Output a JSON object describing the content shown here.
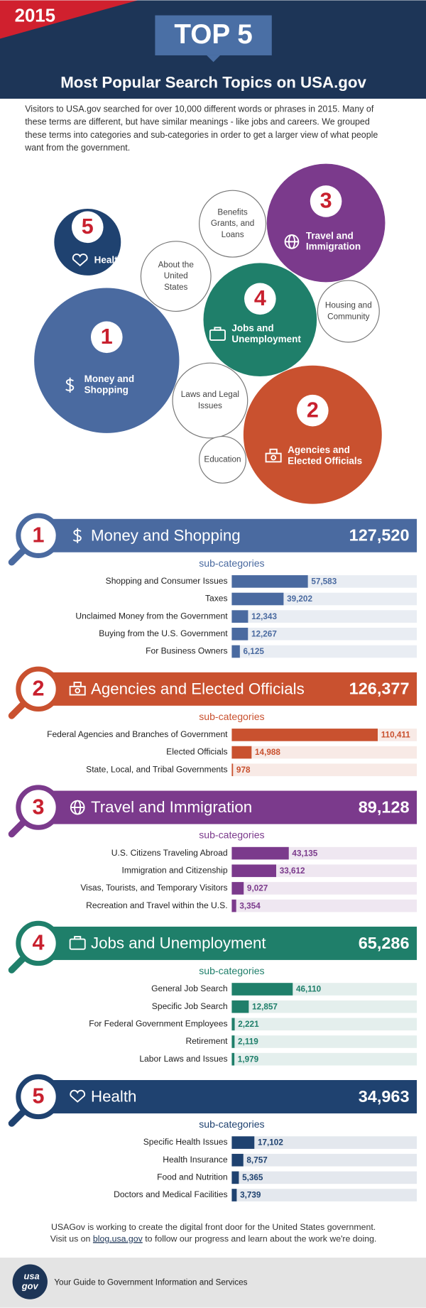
{
  "header": {
    "year": "2015",
    "badge": "TOP 5",
    "title": "Most Popular Search Topics on USA.gov"
  },
  "intro": [
    "Visitors to USA.gov searched for over 10,000 different words or phrases in 2015. Many of",
    "these terms are different, but have similar meanings - like jobs and careers. We grouped",
    "these terms into categories and sub-categories in order to get a larger view of what people",
    "want from the government."
  ],
  "bubbles": [
    {
      "rank": "5",
      "label": [
        "Health"
      ]
    },
    {
      "label": [
        "About the",
        "United",
        "States"
      ]
    },
    {
      "label": [
        "Benefits",
        "Grants, and",
        "Loans"
      ]
    },
    {
      "rank": "3",
      "label": [
        "Travel and",
        "Immigration"
      ]
    },
    {
      "rank": "4",
      "label": [
        "Jobs and",
        "Unemployment"
      ]
    },
    {
      "label": [
        "Housing and",
        "Community"
      ]
    },
    {
      "rank": "1",
      "label": [
        "Money and",
        "Shopping"
      ]
    },
    {
      "label": [
        "Laws and Legal",
        "Issues"
      ]
    },
    {
      "rank": "2",
      "label": [
        "Agencies and",
        "Elected Officials"
      ]
    },
    {
      "label": [
        "Education"
      ]
    }
  ],
  "bar_xlim": [
    0,
    140000
  ],
  "sections": [
    {
      "rank": "1",
      "title": "Money and Shopping",
      "total": "127,520",
      "subtitle": "sub-categories",
      "color": "#4a6aa0",
      "items": [
        {
          "name": "Shopping and Consumer Issues",
          "value": 57583,
          "value_label": "57,583"
        },
        {
          "name": "Taxes",
          "value": 39202,
          "value_label": "39,202"
        },
        {
          "name": "Unclaimed Money from the Government",
          "value": 12343,
          "value_label": "12,343"
        },
        {
          "name": "Buying from the U.S. Government",
          "value": 12267,
          "value_label": "12,267"
        },
        {
          "name": "For Business Owners",
          "value": 6125,
          "value_label": "6,125"
        }
      ]
    },
    {
      "rank": "2",
      "title": "Agencies and Elected Officials",
      "total": "126,377",
      "subtitle": "sub-categories",
      "color": "#c9512f",
      "items": [
        {
          "name": "Federal Agencies and Branches of Government",
          "value": 110411,
          "value_label": "110,411"
        },
        {
          "name": "Elected Officials",
          "value": 14988,
          "value_label": "14,988"
        },
        {
          "name": "State, Local, and Tribal Governments",
          "value": 978,
          "value_label": "978"
        }
      ]
    },
    {
      "rank": "3",
      "title": "Travel and Immigration",
      "total": "89,128",
      "subtitle": "sub-categories",
      "color": "#7b3a8c",
      "items": [
        {
          "name": "U.S. Citizens Traveling Abroad",
          "value": 43135,
          "value_label": "43,135"
        },
        {
          "name": "Immigration and Citizenship",
          "value": 33612,
          "value_label": "33,612"
        },
        {
          "name": "Visas, Tourists, and Temporary Visitors",
          "value": 9027,
          "value_label": "9,027"
        },
        {
          "name": "Recreation and Travel within the U.S.",
          "value": 3354,
          "value_label": "3,354"
        }
      ]
    },
    {
      "rank": "4",
      "title": "Jobs and Unemployment",
      "total": "65,286",
      "subtitle": "sub-categories",
      "color": "#1f7f6a",
      "items": [
        {
          "name": "General Job Search",
          "value": 46110,
          "value_label": "46,110"
        },
        {
          "name": "Specific Job Search",
          "value": 12857,
          "value_label": "12,857"
        },
        {
          "name": "For Federal Government Employees",
          "value": 2221,
          "value_label": "2,221"
        },
        {
          "name": "Retirement",
          "value": 2119,
          "value_label": "2,119"
        },
        {
          "name": "Labor Laws and Issues",
          "value": 1979,
          "value_label": "1,979"
        }
      ]
    },
    {
      "rank": "5",
      "title": "Health",
      "total": "34,963",
      "subtitle": "sub-categories",
      "color": "#1f4270",
      "items": [
        {
          "name": "Specific Health Issues",
          "value": 17102,
          "value_label": "17,102"
        },
        {
          "name": "Health Insurance",
          "value": 8757,
          "value_label": "8,757"
        },
        {
          "name": "Food and Nutrition",
          "value": 5365,
          "value_label": "5,365"
        },
        {
          "name": "Doctors and Medical Facilities",
          "value": 3739,
          "value_label": "3,739"
        }
      ]
    }
  ],
  "footer": {
    "line1": "USAGov is working to create the digital front door for the United States government.",
    "line2_before": "Visit us on",
    "link": "blog.usa.gov",
    "line2_after": "to follow our progress and learn about the work we're doing.",
    "logo": [
      "usa",
      "gov"
    ],
    "tagline": "Your Guide to Government Information and Services"
  }
}
